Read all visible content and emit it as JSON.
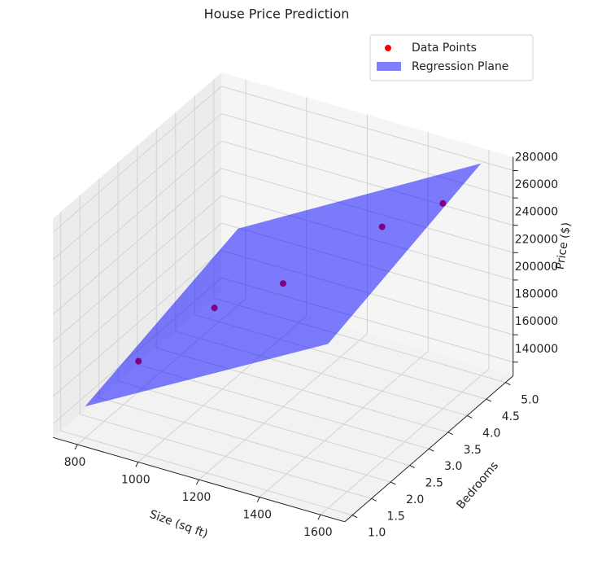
{
  "chart_data": {
    "type": "scatter3d",
    "title": "House Price Prediction",
    "x_label": "Size (sq ft)",
    "y_label": "Bedrooms",
    "z_label": "Price ($)",
    "series": [
      {
        "name": "Data Points",
        "color": "#ff0000",
        "x": [
          850,
          1100,
          1200,
          1400,
          1600
        ],
        "y": [
          2,
          2,
          3,
          4,
          4
        ],
        "z": [
          165000,
          220000,
          220000,
          250000,
          280000
        ]
      }
    ],
    "plane": {
      "name": "Regression Plane",
      "color": "#0000ff",
      "x": [
        800,
        1600,
        1600,
        800
      ],
      "y": [
        1,
        1,
        5,
        5
      ],
      "z": [
        153000,
        250000,
        285000,
        186000
      ]
    },
    "xlim": [
      720,
      1680
    ],
    "ylim": [
      0.8,
      5.2
    ],
    "zlim": [
      130000,
      290000
    ],
    "xticks": [
      800,
      1000,
      1200,
      1400,
      1600
    ],
    "yticks": [
      {
        "value": 1,
        "label": "1.0"
      },
      {
        "value": 1.5,
        "label": "1.5"
      },
      {
        "value": 2,
        "label": "2.0"
      },
      {
        "value": 2.5,
        "label": "2.5"
      },
      {
        "value": 3,
        "label": "3.0"
      },
      {
        "value": 3.5,
        "label": "3.5"
      },
      {
        "value": 4,
        "label": "4.0"
      },
      {
        "value": 4.5,
        "label": "4.5"
      },
      {
        "value": 5,
        "label": "5.0"
      }
    ],
    "zticks": [
      140000,
      160000,
      180000,
      200000,
      220000,
      240000,
      260000,
      280000
    ],
    "grid": true,
    "legend": "upper right"
  }
}
